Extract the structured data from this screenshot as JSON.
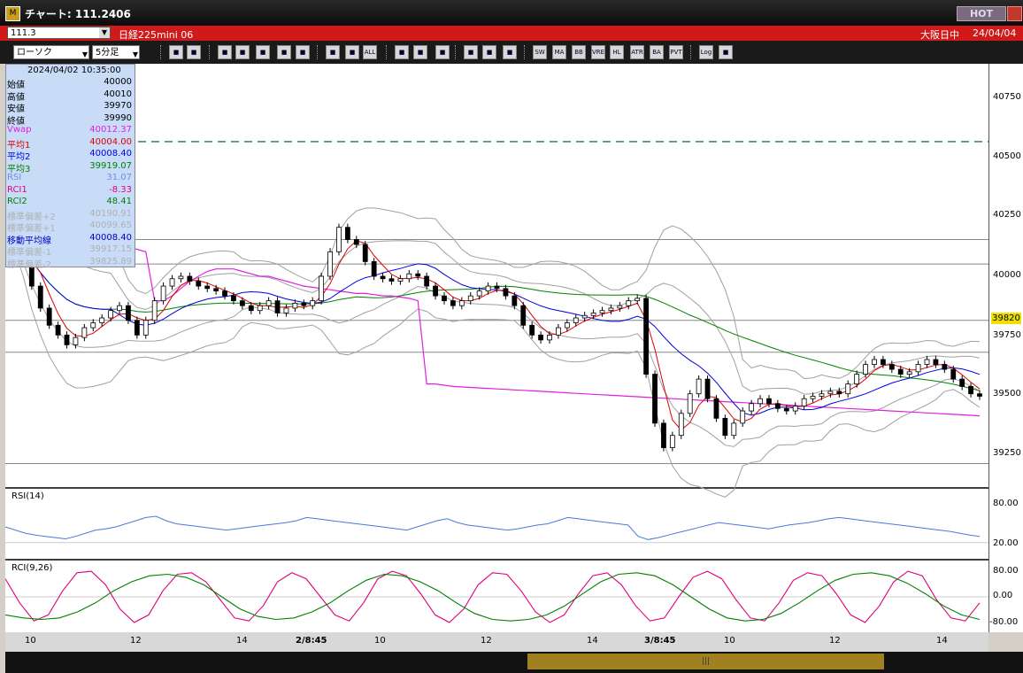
{
  "window": {
    "title": "チャート: 111.2406",
    "hot": "HOT"
  },
  "header": {
    "code": "111.3",
    "symbol": "日経225mini 06",
    "market": "大阪日中",
    "date": "24/04/04"
  },
  "toolbar": {
    "chart_type": "ローソク",
    "period": "5分足",
    "buttons": [
      "search",
      "cross",
      "candle-s",
      "ma",
      "bar",
      "pf",
      "kagi",
      "candle",
      "candle2",
      "all",
      "pen",
      "arrow",
      "undo",
      "settings",
      "tool",
      "color",
      "SW",
      "MA",
      "BB",
      "VRE",
      "HL",
      "ATR",
      "BA",
      "PVT",
      "Log",
      "exit"
    ],
    "text_buttons": {
      "all": "ALL",
      "SW": "SW",
      "MA": "MA",
      "BB": "BB",
      "VRE": "VRE",
      "HL": "HL",
      "ATR": "ATR",
      "BA": "BA",
      "PVT": "PVT",
      "Log": "Log"
    }
  },
  "info": {
    "datetime": "2024/04/02  10:35:00",
    "rows": [
      {
        "k": "始値",
        "v": "40000",
        "c": "#000000"
      },
      {
        "k": "高値",
        "v": "40010",
        "c": "#000000"
      },
      {
        "k": "安値",
        "v": "39970",
        "c": "#000000"
      },
      {
        "k": "終値",
        "v": "39990",
        "c": "#000000"
      },
      {
        "k": "Vwap",
        "v": "40012.37",
        "c": "#e020e0"
      },
      {
        "k": "平均1",
        "v": "40004.00",
        "c": "#e00000"
      },
      {
        "k": "平均2",
        "v": "40008.40",
        "c": "#0000e0"
      },
      {
        "k": "平均3",
        "v": "39919.07",
        "c": "#008000"
      },
      {
        "k": "RSI",
        "v": "31.07",
        "c": "#7090e0"
      },
      {
        "k": "RCI1",
        "v": "-8.33",
        "c": "#e0007a"
      },
      {
        "k": "RCI2",
        "v": "48.41",
        "c": "#008000"
      },
      {
        "k": "標準偏差+2",
        "v": "40190.91",
        "c": "#b0b0b0"
      },
      {
        "k": "標準偏差+1",
        "v": "40099.65",
        "c": "#b0b0b0"
      },
      {
        "k": "移動平均線",
        "v": "40008.40",
        "c": "#0000c0"
      },
      {
        "k": "標準偏差-1",
        "v": "39917.15",
        "c": "#b0b0b0"
      },
      {
        "k": "標準偏差-2",
        "v": "39825.89",
        "c": "#b0b0b0"
      }
    ]
  },
  "panels": {
    "rsi_label": "RSI(14)",
    "rci_label": "RCI(9,26)"
  },
  "price_axis": {
    "ticks": [
      "40750",
      "40500",
      "40250",
      "40000",
      "39750",
      "39500",
      "39250"
    ],
    "current": "39820"
  },
  "rsi_axis": {
    "ticks": [
      "80.00",
      "20.00"
    ]
  },
  "rci_axis": {
    "ticks": [
      "80.00",
      "0.00",
      "-80.00"
    ]
  },
  "time_axis": {
    "labels": [
      "10",
      "12",
      "14",
      "2/8:45",
      "10",
      "12",
      "14",
      "3/8:45",
      "10",
      "12",
      "14"
    ]
  },
  "colors": {
    "vwap": "#e020e0",
    "ma1": "#e00000",
    "ma2": "#0000e0",
    "ma3": "#008000",
    "rsi": "#4a7ad8",
    "rci1": "#e0007a",
    "rci2": "#008000",
    "bands": "#a0a0a0",
    "dashed": "#207070"
  },
  "chart_data": {
    "type": "candlestick",
    "ylim": [
      39150,
      40850
    ],
    "dashed_level": 40550,
    "horizontal_levels": [
      40150,
      40050,
      39820,
      39690,
      39235
    ],
    "close": [
      40150,
      40080,
      39960,
      39870,
      39800,
      39760,
      39720,
      39750,
      39790,
      39810,
      39830,
      39860,
      39880,
      39820,
      39760,
      39820,
      39900,
      39960,
      39990,
      40000,
      39980,
      39960,
      39950,
      39940,
      39920,
      39900,
      39880,
      39860,
      39880,
      39900,
      39850,
      39870,
      39890,
      39880,
      39900,
      40000,
      40100,
      40200,
      40150,
      40130,
      40060,
      40000,
      39990,
      39980,
      39990,
      40010,
      40000,
      39960,
      39920,
      39900,
      39880,
      39900,
      39920,
      39940,
      39960,
      39950,
      39920,
      39880,
      39800,
      39760,
      39740,
      39760,
      39790,
      39810,
      39830,
      39840,
      39850,
      39860,
      39870,
      39880,
      39900,
      39910,
      39600,
      39400,
      39300,
      39350,
      39440,
      39520,
      39580,
      39500,
      39420,
      39350,
      39400,
      39450,
      39480,
      39500,
      39480,
      39460,
      39450,
      39470,
      39500,
      39510,
      39520,
      39530,
      39520,
      39560,
      39600,
      39640,
      39660,
      39640,
      39620,
      39600,
      39610,
      39640,
      39660,
      39640,
      39620,
      39580,
      39550,
      39520,
      39510
    ],
    "vwap": [
      40300,
      40250,
      40220,
      40210,
      40200,
      40200,
      40190,
      40180,
      40170,
      40160,
      40150,
      40140,
      40130,
      40120,
      40110,
      40100,
      39900,
      39900,
      39920,
      39950,
      39980,
      40000,
      40020,
      40030,
      40030,
      40030,
      40020,
      40010,
      40000,
      40000,
      39990,
      39980,
      39970,
      39960,
      39955,
      39950,
      39945,
      39940,
      39935,
      39930,
      39930,
      39925,
      39920,
      39920,
      39915,
      39910,
      39900,
      39560,
      39560,
      39555,
      39550,
      39548,
      39546,
      39544,
      39542,
      39540,
      39538,
      39536,
      39534,
      39532,
      39530,
      39528,
      39526,
      39524,
      39522,
      39520,
      39518,
      39516,
      39514,
      39512,
      39510,
      39508,
      39506,
      39504,
      39502,
      39500,
      39498,
      39496,
      39494,
      39492,
      39490,
      39488,
      39486,
      39484,
      39482,
      39480,
      39478,
      39476,
      39474,
      39472,
      39470,
      39468,
      39466,
      39464,
      39462,
      39460,
      39458,
      39456,
      39454,
      39452,
      39450,
      39448,
      39446,
      39444,
      39442,
      39440,
      39438,
      39436,
      39434,
      39432,
      39430
    ],
    "rsi": [
      45,
      40,
      35,
      32,
      30,
      28,
      26,
      30,
      35,
      40,
      42,
      45,
      50,
      55,
      60,
      62,
      55,
      50,
      48,
      46,
      44,
      42,
      40,
      42,
      44,
      46,
      48,
      50,
      52,
      55,
      60,
      58,
      56,
      54,
      52,
      50,
      48,
      46,
      44,
      42,
      40,
      45,
      50,
      55,
      58,
      52,
      48,
      46,
      44,
      42,
      40,
      42,
      45,
      48,
      50,
      55,
      60,
      58,
      56,
      54,
      52,
      50,
      48,
      30,
      25,
      28,
      32,
      36,
      40,
      44,
      48,
      52,
      50,
      48,
      46,
      44,
      42,
      45,
      48,
      50,
      52,
      55,
      58,
      60,
      58,
      56,
      54,
      52,
      50,
      48,
      46,
      44,
      42,
      40,
      38,
      35,
      32,
      30
    ],
    "rci1": [
      60,
      -20,
      -80,
      -60,
      20,
      80,
      85,
      40,
      -40,
      -85,
      -60,
      20,
      75,
      80,
      50,
      -10,
      -70,
      -80,
      -30,
      50,
      80,
      60,
      0,
      -60,
      -80,
      -20,
      60,
      85,
      70,
      10,
      -60,
      -85,
      -40,
      40,
      80,
      75,
      20,
      -50,
      -85,
      -60,
      10,
      70,
      80,
      40,
      -30,
      -80,
      -70,
      0,
      65,
      85,
      60,
      -10,
      -70,
      -80,
      -20,
      55,
      80,
      70,
      10,
      -60,
      -85,
      -30,
      50,
      85,
      70,
      -10,
      -70,
      -80,
      -20
    ],
    "rci2": [
      -60,
      -70,
      -75,
      -70,
      -50,
      -20,
      20,
      50,
      70,
      75,
      65,
      40,
      0,
      -40,
      -65,
      -75,
      -70,
      -50,
      -20,
      20,
      55,
      75,
      70,
      50,
      20,
      -20,
      -55,
      -75,
      -80,
      -75,
      -60,
      -30,
      10,
      50,
      75,
      80,
      70,
      40,
      0,
      -40,
      -70,
      -80,
      -75,
      -55,
      -20,
      20,
      55,
      75,
      80,
      70,
      45,
      10,
      -30,
      -60,
      -75
    ]
  }
}
